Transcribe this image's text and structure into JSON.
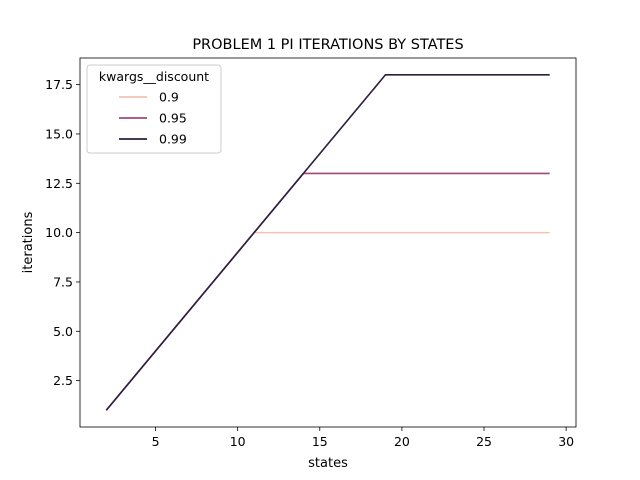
{
  "chart_data": {
    "type": "line",
    "title": "PROBLEM 1 PI ITERATIONS BY STATES",
    "xlabel": "states",
    "ylabel": "iterations",
    "xlim": [
      0.4,
      30.6
    ],
    "ylim": [
      0.15,
      18.85
    ],
    "xticks": [
      5,
      10,
      15,
      20,
      25,
      30
    ],
    "yticks": [
      2.5,
      5.0,
      7.5,
      10.0,
      12.5,
      15.0,
      17.5
    ],
    "xtick_labels": [
      "5",
      "10",
      "15",
      "20",
      "25",
      "30"
    ],
    "ytick_labels": [
      "2.5",
      "5.0",
      "7.5",
      "10.0",
      "12.5",
      "15.0",
      "17.5"
    ],
    "grid": false,
    "legend": {
      "title": "kwargs__discount",
      "placement": "top-left"
    },
    "series": [
      {
        "name": "0.9",
        "color": "#f1c3b5",
        "x": [
          2,
          11,
          29
        ],
        "y": [
          1,
          10,
          10
        ]
      },
      {
        "name": "0.95",
        "color": "#a0487c",
        "x": [
          2,
          14,
          29
        ],
        "y": [
          1,
          13,
          13
        ]
      },
      {
        "name": "0.99",
        "color": "#2d1e3e",
        "x": [
          2,
          19,
          29
        ],
        "y": [
          1,
          18,
          18
        ]
      }
    ]
  }
}
